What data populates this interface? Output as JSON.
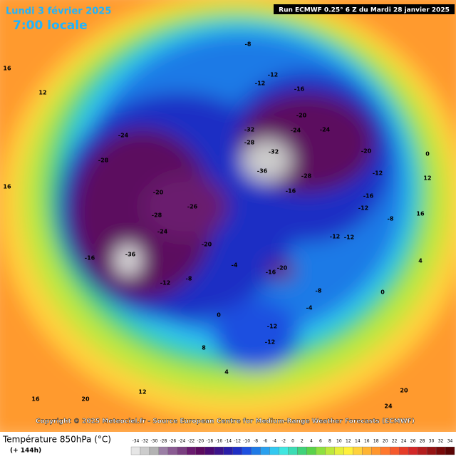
{
  "header": {
    "date": "Lundi 3 février 2025",
    "time": "7:00 locale",
    "run": "Run ECMWF 0.25° 6 Z du Mardi 28 janvier 2025"
  },
  "copyright": "Copyright © 2025 Meteociel.fr - Source European Centre for Medium-Range Weather Forecasts (ECMWF)",
  "footer": {
    "title": "Température 850hPa (°C)",
    "lead": "(+ 144h)"
  },
  "legend": {
    "values": [
      -34,
      -32,
      -30,
      -28,
      -26,
      -24,
      -22,
      -20,
      -18,
      -16,
      -14,
      -12,
      -10,
      -8,
      -6,
      -4,
      -2,
      0,
      2,
      4,
      6,
      8,
      10,
      12,
      14,
      16,
      18,
      20,
      22,
      24,
      26,
      28,
      30,
      32,
      34
    ],
    "colors": [
      "#e6e6e6",
      "#cccccc",
      "#b3b3b3",
      "#9b7fa5",
      "#8a5b92",
      "#7a3e80",
      "#6a1a6e",
      "#5c0a5e",
      "#4b0a70",
      "#3c148a",
      "#2a1ea8",
      "#1f2fc4",
      "#1e50e0",
      "#1f7ae6",
      "#2aa0ee",
      "#33c8f0",
      "#40e6e0",
      "#3cdcb4",
      "#40d27a",
      "#5ad24a",
      "#8ee040",
      "#bde83c",
      "#e6ef3c",
      "#fff03c",
      "#ffd23c",
      "#ffb432",
      "#ff962d",
      "#ff782d",
      "#f55a2d",
      "#e63c28",
      "#d22828",
      "#b41e1e",
      "#961414",
      "#780a0a",
      "#5a0505"
    ]
  },
  "map_labels": [
    -8,
    -12,
    -12,
    -16,
    -20,
    -24,
    -32,
    -24,
    -28,
    -32,
    -36,
    -28,
    -20,
    -12,
    -16,
    -16,
    -12,
    -12,
    -12,
    -8,
    -24,
    -28,
    -20,
    -28,
    -26,
    -24,
    -20,
    -16,
    -36,
    -12,
    -8,
    -20,
    -16,
    -12,
    -12,
    -8,
    -4,
    0,
    0,
    4,
    12,
    16,
    16,
    12,
    16,
    20,
    20,
    24,
    4,
    8,
    0,
    -4,
    16,
    12
  ]
}
